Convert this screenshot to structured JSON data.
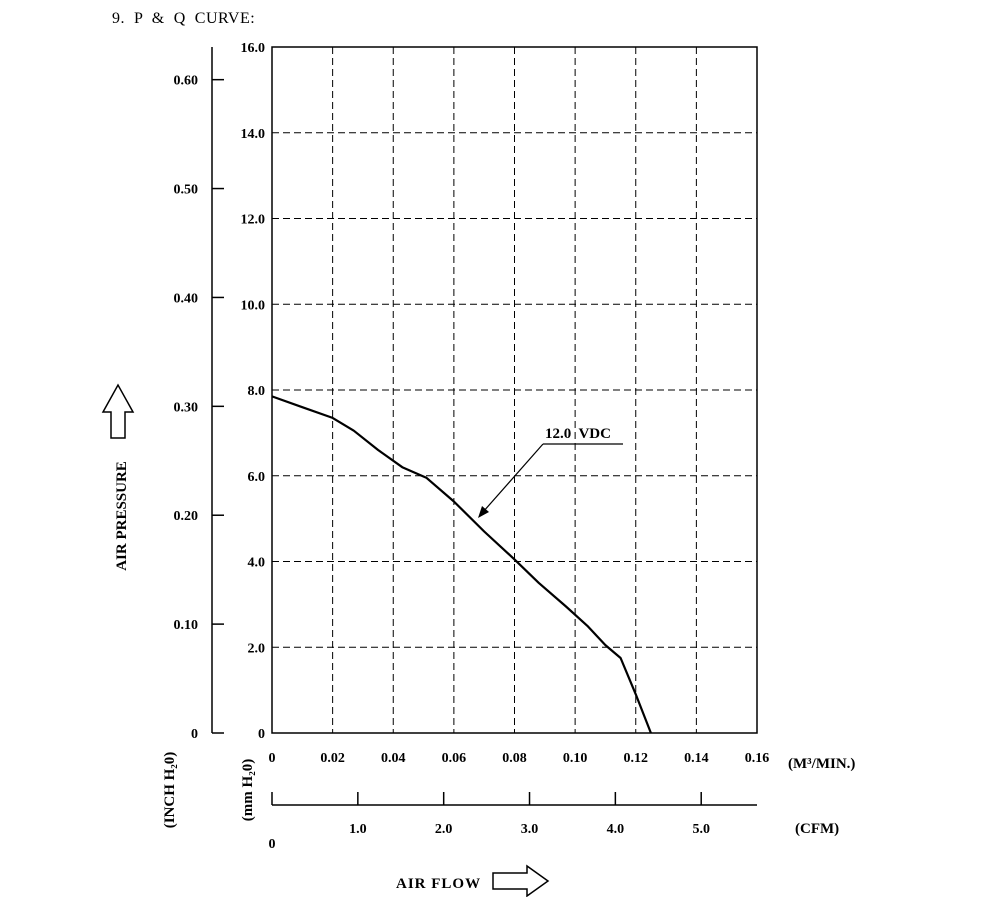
{
  "heading": "9.  P  &  Q  CURVE:",
  "chart_data": {
    "type": "line",
    "title": "",
    "x_primary": {
      "unit_label": "(M³/MIN.)",
      "range": [
        0,
        0.16
      ],
      "ticks": [
        "0",
        "0.02",
        "0.04",
        "0.06",
        "0.08",
        "0.10",
        "0.12",
        "0.14",
        "0.16"
      ]
    },
    "x_secondary": {
      "unit_label": "(CFM)",
      "range": [
        0,
        5.65
      ],
      "ticks": [
        "1.0",
        "2.0",
        "3.0",
        "4.0",
        "5.0"
      ],
      "tick_values": [
        1,
        2,
        3,
        4,
        5
      ],
      "zero_label": "0"
    },
    "x_title": "AIR FLOW",
    "y_primary": {
      "unit_label": "(mm H₂0)",
      "range": [
        0,
        16
      ],
      "ticks": [
        "0",
        "2.0",
        "4.0",
        "6.0",
        "8.0",
        "10.0",
        "12.0",
        "14.0",
        "16.0"
      ]
    },
    "y_secondary": {
      "unit_label": "(INCH H₂0)",
      "range": [
        0,
        0.63
      ],
      "ticks": [
        "0",
        "0.10",
        "0.20",
        "0.30",
        "0.40",
        "0.50",
        "0.60"
      ],
      "tick_values": [
        0,
        0.1,
        0.2,
        0.3,
        0.4,
        0.5,
        0.6
      ]
    },
    "y_title": "AIR PRESSURE",
    "grid": true,
    "series": [
      {
        "name": "12.0  VDC",
        "x": [
          0,
          0.01,
          0.02,
          0.027,
          0.035,
          0.043,
          0.051,
          0.06,
          0.07,
          0.08,
          0.088,
          0.097,
          0.104,
          0.11,
          0.115,
          0.12,
          0.125
        ],
        "y": [
          7.85,
          7.6,
          7.35,
          7.05,
          6.6,
          6.2,
          5.95,
          5.4,
          4.7,
          4.05,
          3.5,
          2.95,
          2.5,
          2.05,
          1.75,
          0.9,
          0.0
        ]
      }
    ]
  }
}
